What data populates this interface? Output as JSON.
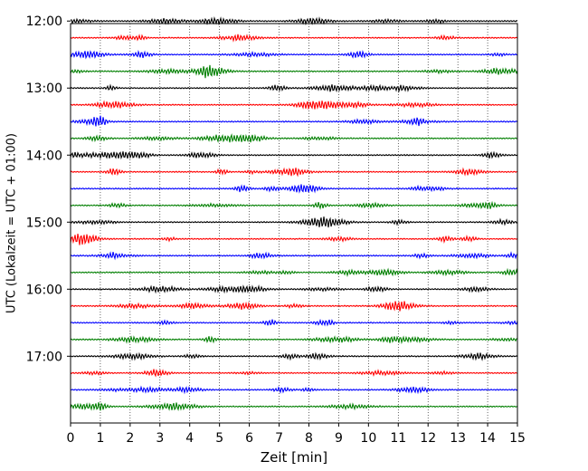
{
  "chart_data": {
    "type": "line",
    "title": "",
    "xlabel": "Zeit  [min]",
    "ylabel": "UTC (Lokalzeit = UTC + 01:00)",
    "xlim": [
      0,
      15
    ],
    "x_ticks": [
      "0",
      "1",
      "2",
      "3",
      "4",
      "5",
      "6",
      "7",
      "8",
      "9",
      "10",
      "11",
      "12",
      "13",
      "14",
      "15"
    ],
    "y_range_minutes": [
      722.25,
      1079.75
    ],
    "y_ticks": [
      {
        "label": "12:00",
        "minutes": 720
      },
      {
        "label": "13:00",
        "minutes": 780
      },
      {
        "label": "14:00",
        "minutes": 840
      },
      {
        "label": "15:00",
        "minutes": 900
      },
      {
        "label": "16:00",
        "minutes": 960
      },
      {
        "label": "17:00",
        "minutes": 1020
      }
    ],
    "vertical_grid": true,
    "grid_style": "dotted",
    "trace_interval_minutes": 15,
    "trace_colors": [
      "#000000",
      "#ff0000",
      "#0000ff",
      "#007f00"
    ],
    "traces": [
      {
        "start": "12:00",
        "color": "#000000"
      },
      {
        "start": "12:15",
        "color": "#ff0000"
      },
      {
        "start": "12:30",
        "color": "#0000ff"
      },
      {
        "start": "12:45",
        "color": "#007f00"
      },
      {
        "start": "13:00",
        "color": "#000000"
      },
      {
        "start": "13:15",
        "color": "#ff0000"
      },
      {
        "start": "13:30",
        "color": "#0000ff"
      },
      {
        "start": "13:45",
        "color": "#007f00"
      },
      {
        "start": "14:00",
        "color": "#000000"
      },
      {
        "start": "14:15",
        "color": "#ff0000"
      },
      {
        "start": "14:30",
        "color": "#0000ff"
      },
      {
        "start": "14:45",
        "color": "#007f00"
      },
      {
        "start": "15:00",
        "color": "#000000"
      },
      {
        "start": "15:15",
        "color": "#ff0000"
      },
      {
        "start": "15:30",
        "color": "#0000ff"
      },
      {
        "start": "15:45",
        "color": "#007f00"
      },
      {
        "start": "16:00",
        "color": "#000000"
      },
      {
        "start": "16:15",
        "color": "#ff0000"
      },
      {
        "start": "16:30",
        "color": "#0000ff"
      },
      {
        "start": "16:45",
        "color": "#007f00"
      },
      {
        "start": "17:00",
        "color": "#000000"
      },
      {
        "start": "17:15",
        "color": "#ff0000"
      },
      {
        "start": "17:30",
        "color": "#0000ff"
      },
      {
        "start": "17:45",
        "color": "#007f00"
      }
    ]
  }
}
